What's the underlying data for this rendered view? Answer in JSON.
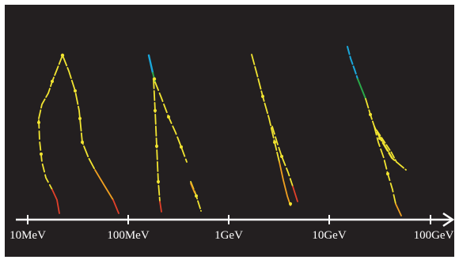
{
  "colors": {
    "background": "#231f20",
    "axis": "#ffffff",
    "track_yellow": "#f2e531",
    "track_orange": "#f0a020",
    "track_red": "#e2402a",
    "track_blue": "#1aa6d9",
    "track_green": "#2aa84a"
  },
  "axis": {
    "scale": "log",
    "direction_arrow": "right",
    "tick_labels": [
      "10MeV",
      "100MeV",
      "1GeV",
      "10GeV",
      "100GeV"
    ]
  },
  "showers": [
    {
      "id": "shower-10mev-100mev",
      "colors_present": [
        "yellow",
        "orange",
        "red"
      ]
    },
    {
      "id": "shower-100mev-1gev",
      "colors_present": [
        "blue",
        "green",
        "yellow",
        "orange",
        "red"
      ]
    },
    {
      "id": "shower-1gev-10gev",
      "colors_present": [
        "yellow",
        "orange",
        "red"
      ]
    },
    {
      "id": "shower-10gev-100gev",
      "colors_present": [
        "blue",
        "green",
        "yellow",
        "orange"
      ]
    }
  ]
}
